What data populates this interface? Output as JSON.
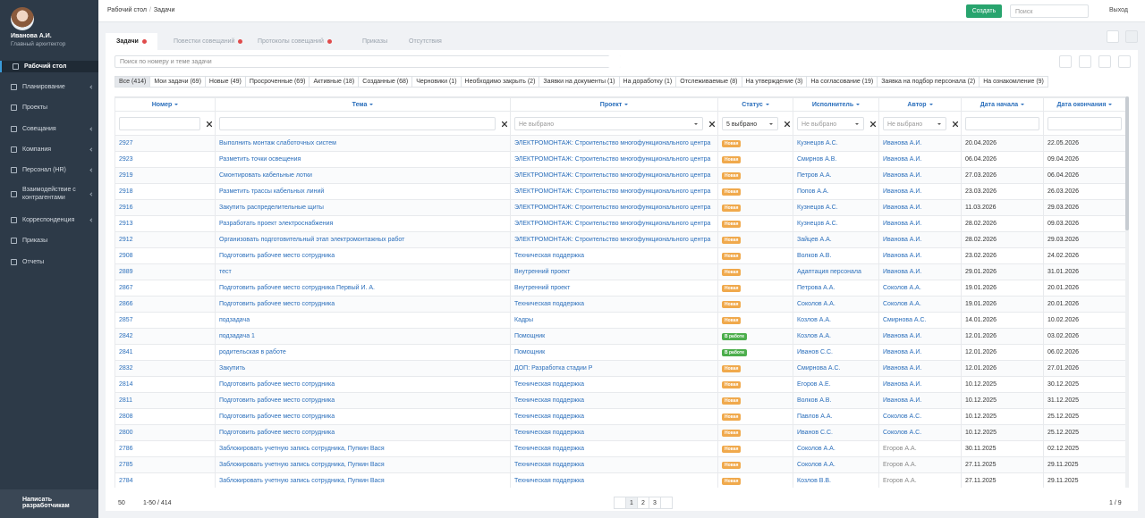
{
  "user": {
    "name": "Иванова А.И.",
    "role": "Главный архитектор"
  },
  "sidebar": [
    "Рабочий стол",
    "Планирование",
    "Проекты",
    "Совещания",
    "Компания",
    "Персонал (HR)",
    "Взаимодействие с контрагентами",
    "Корреспонденция",
    "Приказы",
    "Отчеты"
  ],
  "sidebar_footer": "Написать разработчикам",
  "breadcrumb": [
    "Рабочий стол",
    "Задачи"
  ],
  "topbar": {
    "create": "Создать",
    "search_placeholder": "Поиск",
    "logout": "Выход"
  },
  "tabs": [
    "Задачи",
    "Повестки совещаний",
    "Протоколы совещаний",
    "Приказы",
    "Отсутствия"
  ],
  "search_placeholder": "Поиск по номеру и теме задачи",
  "filters": [
    "Все (414)",
    "Мои задачи (69)",
    "Новые (49)",
    "Просроченные (69)",
    "Активные (18)",
    "Созданные (68)",
    "Черновики (1)",
    "Необходимо закрыть (2)",
    "Заявки на документы (1)",
    "На доработку (1)",
    "Отслеживаемые (8)",
    "На утверждение (3)",
    "На согласование (19)",
    "Заявка на подбор персонала (2)",
    "На ознакомление (9)"
  ],
  "columns": [
    "Номер",
    "Тема",
    "Проект",
    "Статус",
    "Исполнитель",
    "Автор",
    "Дата начала",
    "Дата окончания"
  ],
  "column_filters": {
    "project": "Не выбрано",
    "status": "5 выбрано",
    "executor": "Не выбрано",
    "author": "Не выбрано"
  },
  "rows": [
    [
      "2927",
      "Выполнить монтаж слаботочных систем",
      "ЭЛЕКТРОМОНТАЖ: Строительство многофункционального центра",
      "Новая",
      "Кузнецов А.С.",
      "Иванова А.И.",
      "20.04.2026",
      "22.05.2026"
    ],
    [
      "2923",
      "Разметить точки освещения",
      "ЭЛЕКТРОМОНТАЖ: Строительство многофункционального центра",
      "Новая",
      "Смирнов А.В.",
      "Иванова А.И.",
      "06.04.2026",
      "09.04.2026"
    ],
    [
      "2919",
      "Смонтировать кабельные лотки",
      "ЭЛЕКТРОМОНТАЖ: Строительство многофункционального центра",
      "Новая",
      "Петров А.А.",
      "Иванова А.И.",
      "27.03.2026",
      "06.04.2026"
    ],
    [
      "2918",
      "Разметить трассы кабельных линий",
      "ЭЛЕКТРОМОНТАЖ: Строительство многофункционального центра",
      "Новая",
      "Попов А.А.",
      "Иванова А.И.",
      "23.03.2026",
      "26.03.2026"
    ],
    [
      "2916",
      "Закупить распределительные щиты",
      "ЭЛЕКТРОМОНТАЖ: Строительство многофункционального центра",
      "Новая",
      "Кузнецов А.С.",
      "Иванова А.И.",
      "11.03.2026",
      "29.03.2026"
    ],
    [
      "2913",
      "Разработать проект электроснабжения",
      "ЭЛЕКТРОМОНТАЖ: Строительство многофункционального центра",
      "Новая",
      "Кузнецов А.С.",
      "Иванова А.И.",
      "28.02.2026",
      "09.03.2026"
    ],
    [
      "2912",
      "Организовать подготовительный этап электромонтажных работ",
      "ЭЛЕКТРОМОНТАЖ: Строительство многофункционального центра",
      "Новая",
      "Зайцев А.А.",
      "Иванова А.И.",
      "28.02.2026",
      "29.03.2026"
    ],
    [
      "2908",
      "Подготовить рабочее место сотрудника",
      "Техническая поддержка",
      "Новая",
      "Волков А.В.",
      "Иванова А.И.",
      "23.02.2026",
      "24.02.2026"
    ],
    [
      "2889",
      "тест",
      "Внутренний проект",
      "Новая",
      "Адаптация персонала",
      "Иванова А.И.",
      "29.01.2026",
      "31.01.2026"
    ],
    [
      "2867",
      "Подготовить рабочее место сотрудника Первый И. А.",
      "Внутренний проект",
      "Новая",
      "Петрова А.А.",
      "Соколов А.А.",
      "19.01.2026",
      "20.01.2026"
    ],
    [
      "2866",
      "Подготовить рабочее место сотрудника",
      "Техническая поддержка",
      "Новая",
      "Соколов А.А.",
      "Соколов А.А.",
      "19.01.2026",
      "20.01.2026"
    ],
    [
      "2857",
      "подзадача",
      "Кадры",
      "Новая",
      "Козлов А.А.",
      "Смирнова А.С.",
      "14.01.2026",
      "10.02.2026"
    ],
    [
      "2842",
      "подзадача 1",
      "Помощник",
      "В работе",
      "Козлов А.А.",
      "Иванова А.И.",
      "12.01.2026",
      "03.02.2026"
    ],
    [
      "2841",
      "родительская в работе",
      "Помощник",
      "В работе",
      "Иванов С.С.",
      "Иванова А.И.",
      "12.01.2026",
      "06.02.2026"
    ],
    [
      "2832",
      "Закупить",
      "ДОП: Разработка стадии Р",
      "Новая",
      "Смирнова А.С.",
      "Иванова А.И.",
      "12.01.2026",
      "27.01.2026"
    ],
    [
      "2814",
      "Подготовить рабочее место сотрудника",
      "Техническая поддержка",
      "Новая",
      "Егоров А.Е.",
      "Иванова А.И.",
      "10.12.2025",
      "30.12.2025"
    ],
    [
      "2811",
      "Подготовить рабочее место сотрудника",
      "Техническая поддержка",
      "Новая",
      "Волков А.В.",
      "Иванова А.И.",
      "10.12.2025",
      "31.12.2025"
    ],
    [
      "2808",
      "Подготовить рабочее место сотрудника",
      "Техническая поддержка",
      "Новая",
      "Павлов А.А.",
      "Соколов А.С.",
      "10.12.2025",
      "25.12.2025"
    ],
    [
      "2800",
      "Подготовить рабочее место сотрудника",
      "Техническая поддержка",
      "Новая",
      "Иванов С.С.",
      "Соколов А.С.",
      "10.12.2025",
      "25.12.2025"
    ],
    [
      "2786",
      "Заблокировать учетную запись сотрудника, Пупкин Вася",
      "Техническая поддержка",
      "Новая",
      "Соколов А.А.",
      "Егоров А.А.",
      "30.11.2025",
      "02.12.2025"
    ],
    [
      "2785",
      "Заблокировать учетную запись сотрудника, Пупкин Вася",
      "Техническая поддержка",
      "Новая",
      "Соколов А.А.",
      "Егоров А.А.",
      "27.11.2025",
      "29.11.2025"
    ],
    [
      "2784",
      "Заблокировать учетную запись сотрудника, Пупкин Вася",
      "Техническая поддержка",
      "Новая",
      "Козлов В.В.",
      "Егоров А.А.",
      "27.11.2025",
      "29.11.2025"
    ]
  ],
  "pagination": {
    "page_size": "50",
    "range": "1-50 / 414",
    "pages": [
      "1",
      "2",
      "3"
    ],
    "total": "1 / 9"
  }
}
